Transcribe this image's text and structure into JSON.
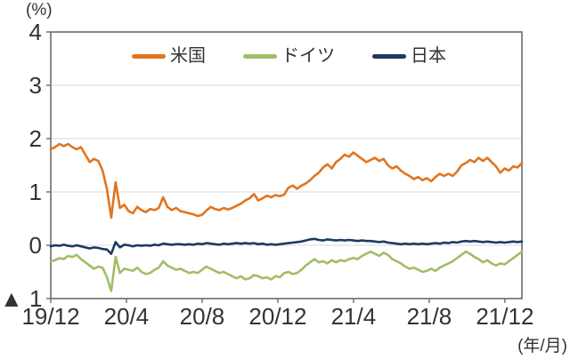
{
  "chart_data": {
    "type": "line",
    "y_unit_label": "(%)",
    "x_unit_label": "(年/月)",
    "x_ticks": [
      "19/12",
      "20/4",
      "20/8",
      "20/12",
      "21/4",
      "21/8",
      "21/12"
    ],
    "x_tick_months": [
      0,
      4,
      8,
      12,
      16,
      20,
      24
    ],
    "x_total_months": 24.9,
    "ylim": [
      -1,
      4
    ],
    "y_ticks": [
      {
        "value": 4,
        "label": "4"
      },
      {
        "value": 3,
        "label": "3"
      },
      {
        "value": 2,
        "label": "2"
      },
      {
        "value": 1,
        "label": "1"
      },
      {
        "value": 0,
        "label": "0"
      },
      {
        "value": -1,
        "label": "▲ 1"
      }
    ],
    "grid": true,
    "legend_position": "top-inside",
    "style": {
      "grid_color": "#d9d9d9",
      "border_color": "#6b6b6b",
      "text_color": "#333333",
      "background": "#ffffff"
    },
    "series": [
      {
        "name": "米国",
        "color": "#e0751f",
        "values": [
          1.8,
          1.84,
          1.9,
          1.86,
          1.9,
          1.84,
          1.8,
          1.84,
          1.7,
          1.56,
          1.62,
          1.58,
          1.4,
          1.05,
          0.52,
          1.18,
          0.7,
          0.76,
          0.64,
          0.6,
          0.72,
          0.66,
          0.62,
          0.68,
          0.66,
          0.7,
          0.9,
          0.72,
          0.66,
          0.7,
          0.64,
          0.62,
          0.6,
          0.58,
          0.55,
          0.57,
          0.65,
          0.72,
          0.68,
          0.66,
          0.7,
          0.67,
          0.7,
          0.74,
          0.78,
          0.84,
          0.88,
          0.96,
          0.84,
          0.88,
          0.93,
          0.9,
          0.94,
          0.92,
          0.95,
          1.08,
          1.12,
          1.06,
          1.12,
          1.16,
          1.22,
          1.3,
          1.36,
          1.46,
          1.52,
          1.44,
          1.56,
          1.62,
          1.7,
          1.66,
          1.74,
          1.68,
          1.62,
          1.56,
          1.6,
          1.64,
          1.58,
          1.62,
          1.5,
          1.44,
          1.48,
          1.4,
          1.34,
          1.3,
          1.24,
          1.28,
          1.22,
          1.26,
          1.2,
          1.28,
          1.34,
          1.3,
          1.34,
          1.3,
          1.38,
          1.5,
          1.54,
          1.6,
          1.56,
          1.64,
          1.58,
          1.64,
          1.56,
          1.48,
          1.36,
          1.44,
          1.4,
          1.48,
          1.46,
          1.54
        ]
      },
      {
        "name": "ドイツ",
        "color": "#a2bd68",
        "values": [
          -0.3,
          -0.28,
          -0.24,
          -0.26,
          -0.2,
          -0.22,
          -0.18,
          -0.26,
          -0.32,
          -0.38,
          -0.44,
          -0.4,
          -0.42,
          -0.6,
          -0.86,
          -0.22,
          -0.52,
          -0.44,
          -0.46,
          -0.48,
          -0.42,
          -0.5,
          -0.54,
          -0.52,
          -0.46,
          -0.42,
          -0.3,
          -0.38,
          -0.42,
          -0.46,
          -0.44,
          -0.48,
          -0.52,
          -0.5,
          -0.52,
          -0.46,
          -0.4,
          -0.44,
          -0.48,
          -0.52,
          -0.5,
          -0.54,
          -0.58,
          -0.62,
          -0.58,
          -0.64,
          -0.62,
          -0.56,
          -0.58,
          -0.62,
          -0.6,
          -0.64,
          -0.58,
          -0.6,
          -0.52,
          -0.5,
          -0.54,
          -0.52,
          -0.46,
          -0.38,
          -0.32,
          -0.26,
          -0.32,
          -0.3,
          -0.34,
          -0.28,
          -0.32,
          -0.28,
          -0.3,
          -0.26,
          -0.24,
          -0.26,
          -0.2,
          -0.16,
          -0.12,
          -0.16,
          -0.2,
          -0.14,
          -0.18,
          -0.26,
          -0.3,
          -0.34,
          -0.4,
          -0.44,
          -0.42,
          -0.46,
          -0.5,
          -0.48,
          -0.44,
          -0.48,
          -0.42,
          -0.38,
          -0.34,
          -0.3,
          -0.24,
          -0.18,
          -0.12,
          -0.16,
          -0.22,
          -0.26,
          -0.32,
          -0.28,
          -0.34,
          -0.38,
          -0.34,
          -0.36,
          -0.3,
          -0.24,
          -0.18,
          -0.12
        ]
      },
      {
        "name": "日本",
        "color": "#1f3a5f",
        "values": [
          -0.02,
          0.0,
          -0.01,
          0.01,
          -0.01,
          -0.02,
          0.0,
          -0.02,
          -0.04,
          -0.06,
          -0.04,
          -0.05,
          -0.07,
          -0.08,
          -0.16,
          0.06,
          -0.04,
          0.01,
          0.0,
          -0.02,
          0.0,
          -0.01,
          0.0,
          -0.01,
          0.01,
          0.0,
          0.03,
          0.02,
          0.01,
          0.02,
          0.02,
          0.01,
          0.02,
          0.01,
          0.03,
          0.02,
          0.04,
          0.03,
          0.02,
          0.01,
          0.03,
          0.02,
          0.03,
          0.04,
          0.03,
          0.04,
          0.03,
          0.04,
          0.02,
          0.03,
          0.01,
          0.02,
          0.01,
          0.02,
          0.03,
          0.04,
          0.05,
          0.06,
          0.07,
          0.09,
          0.11,
          0.12,
          0.1,
          0.09,
          0.11,
          0.1,
          0.09,
          0.1,
          0.09,
          0.1,
          0.09,
          0.08,
          0.09,
          0.08,
          0.08,
          0.07,
          0.06,
          0.07,
          0.05,
          0.04,
          0.03,
          0.02,
          0.03,
          0.02,
          0.03,
          0.02,
          0.03,
          0.02,
          0.03,
          0.04,
          0.03,
          0.05,
          0.04,
          0.06,
          0.05,
          0.07,
          0.08,
          0.07,
          0.08,
          0.07,
          0.06,
          0.07,
          0.06,
          0.05,
          0.06,
          0.05,
          0.06,
          0.07,
          0.06,
          0.07
        ]
      }
    ]
  }
}
